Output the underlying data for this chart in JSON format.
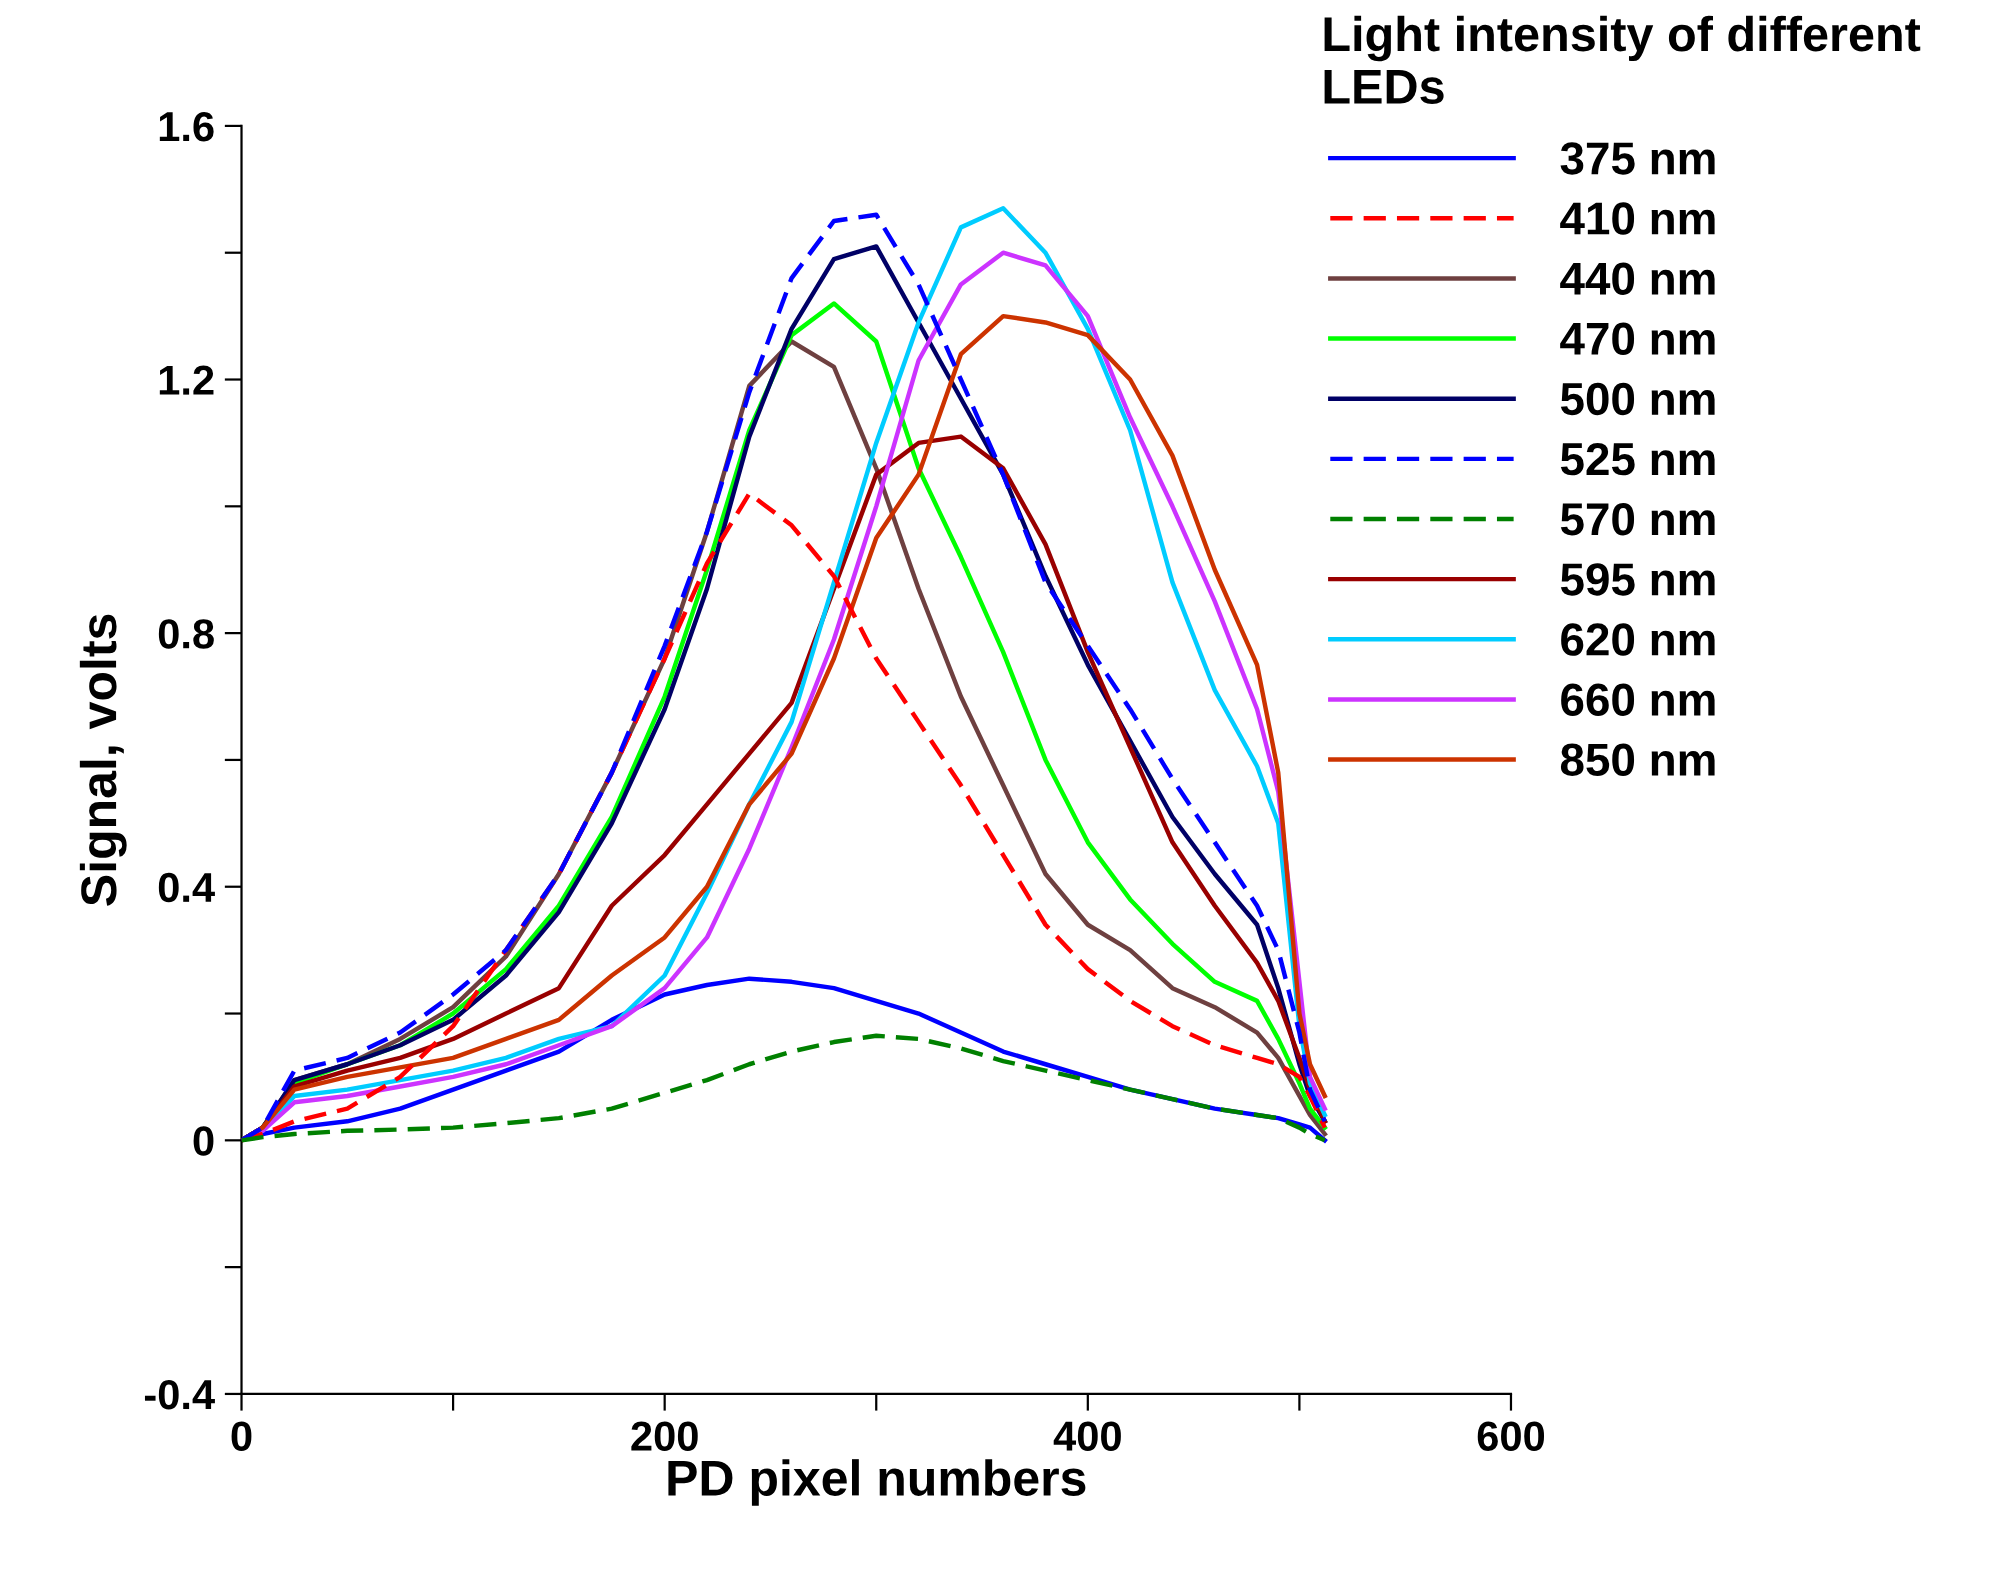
{
  "chart_data": {
    "type": "line",
    "xlabel": "PD pixel numbers",
    "ylabel": "Signal, volts",
    "legend_title": "Light intensity of different LEDs",
    "x": [
      0,
      10,
      25,
      50,
      75,
      100,
      125,
      150,
      175,
      200,
      220,
      240,
      260,
      280,
      300,
      320,
      340,
      360,
      380,
      400,
      420,
      440,
      460,
      480,
      490,
      500,
      505,
      512
    ],
    "series": [
      {
        "name": "375 nm",
        "color": "#0000ff",
        "line_style": "solid",
        "values": [
          0,
          0.01,
          0.02,
          0.03,
          0.05,
          0.08,
          0.11,
          0.14,
          0.19,
          0.23,
          0.245,
          0.255,
          0.25,
          0.24,
          0.22,
          0.2,
          0.17,
          0.14,
          0.12,
          0.1,
          0.08,
          0.065,
          0.05,
          0.04,
          0.035,
          0.025,
          0.02,
          0
        ]
      },
      {
        "name": "410 nm",
        "color": "#ff0000",
        "line_style": "dashed",
        "values": [
          0,
          0.01,
          0.03,
          0.05,
          0.1,
          0.18,
          0.3,
          0.42,
          0.58,
          0.76,
          0.91,
          1.02,
          0.97,
          0.89,
          0.76,
          0.66,
          0.56,
          0.45,
          0.34,
          0.27,
          0.22,
          0.18,
          0.15,
          0.13,
          0.12,
          0.1,
          0.07,
          0.02
        ]
      },
      {
        "name": "440 nm",
        "color": "#6e4040",
        "line_style": "solid",
        "values": [
          0,
          0.02,
          0.095,
          0.12,
          0.16,
          0.21,
          0.29,
          0.42,
          0.58,
          0.76,
          0.96,
          1.19,
          1.26,
          1.22,
          1.06,
          0.87,
          0.7,
          0.56,
          0.42,
          0.34,
          0.3,
          0.24,
          0.21,
          0.17,
          0.13,
          0.07,
          0.04,
          0.01
        ]
      },
      {
        "name": "470 nm",
        "color": "#00ff00",
        "line_style": "solid",
        "values": [
          0,
          0.02,
          0.09,
          0.12,
          0.15,
          0.2,
          0.27,
          0.37,
          0.51,
          0.7,
          0.9,
          1.12,
          1.27,
          1.32,
          1.26,
          1.06,
          0.92,
          0.77,
          0.6,
          0.47,
          0.38,
          0.31,
          0.25,
          0.22,
          0.16,
          0.09,
          0.05,
          0.02
        ]
      },
      {
        "name": "500 nm",
        "color": "#000066",
        "line_style": "solid",
        "values": [
          0,
          0.02,
          0.095,
          0.12,
          0.15,
          0.19,
          0.26,
          0.36,
          0.5,
          0.68,
          0.87,
          1.11,
          1.28,
          1.39,
          1.41,
          1.29,
          1.17,
          1.05,
          0.89,
          0.75,
          0.63,
          0.51,
          0.42,
          0.34,
          0.24,
          0.12,
          0.07,
          0.03
        ]
      },
      {
        "name": "525 nm",
        "color": "#0000ff",
        "line_style": "dashed",
        "values": [
          0,
          0.02,
          0.11,
          0.13,
          0.17,
          0.23,
          0.3,
          0.42,
          0.58,
          0.78,
          0.96,
          1.18,
          1.36,
          1.45,
          1.46,
          1.35,
          1.2,
          1.05,
          0.88,
          0.78,
          0.68,
          0.57,
          0.47,
          0.37,
          0.3,
          0.17,
          0.08,
          0.03
        ]
      },
      {
        "name": "570 nm",
        "color": "#008000",
        "line_style": "dashed",
        "values": [
          0,
          0.005,
          0.01,
          0.015,
          0.017,
          0.02,
          0.027,
          0.035,
          0.05,
          0.075,
          0.095,
          0.12,
          0.14,
          0.155,
          0.165,
          0.16,
          0.145,
          0.125,
          0.11,
          0.095,
          0.08,
          0.065,
          0.05,
          0.04,
          0.035,
          0.02,
          0.01,
          0
        ]
      },
      {
        "name": "595 nm",
        "color": "#990000",
        "line_style": "solid",
        "values": [
          0,
          0.02,
          0.085,
          0.11,
          0.13,
          0.16,
          0.2,
          0.24,
          0.37,
          0.45,
          0.53,
          0.61,
          0.69,
          0.87,
          1.05,
          1.1,
          1.11,
          1.06,
          0.94,
          0.77,
          0.62,
          0.47,
          0.37,
          0.28,
          0.22,
          0.13,
          0.08,
          0.03
        ]
      },
      {
        "name": "620 nm",
        "color": "#00ccff",
        "line_style": "solid",
        "values": [
          0,
          0.015,
          0.07,
          0.08,
          0.095,
          0.11,
          0.13,
          0.16,
          0.18,
          0.26,
          0.39,
          0.53,
          0.66,
          0.88,
          1.1,
          1.29,
          1.44,
          1.47,
          1.4,
          1.28,
          1.12,
          0.88,
          0.71,
          0.59,
          0.5,
          0.18,
          0.09,
          0.04
        ]
      },
      {
        "name": "660 nm",
        "color": "#cc33ff",
        "line_style": "solid",
        "values": [
          0,
          0.015,
          0.06,
          0.07,
          0.085,
          0.1,
          0.12,
          0.15,
          0.18,
          0.24,
          0.32,
          0.46,
          0.62,
          0.79,
          1.0,
          1.23,
          1.35,
          1.4,
          1.38,
          1.3,
          1.14,
          1.0,
          0.85,
          0.68,
          0.55,
          0.25,
          0.1,
          0.05
        ]
      },
      {
        "name": "850 nm",
        "color": "#cc3300",
        "line_style": "solid",
        "values": [
          0,
          0.02,
          0.08,
          0.1,
          0.115,
          0.13,
          0.16,
          0.19,
          0.26,
          0.32,
          0.4,
          0.53,
          0.61,
          0.76,
          0.95,
          1.05,
          1.24,
          1.3,
          1.29,
          1.27,
          1.2,
          1.08,
          0.9,
          0.75,
          0.58,
          0.2,
          0.12,
          0.07
        ]
      }
    ],
    "xlim": [
      0,
      600
    ],
    "xticks": [
      0,
      {
        "value": 100,
        "label": null
      },
      200,
      {
        "value": 300,
        "label": null
      },
      400,
      {
        "value": 500,
        "label": null
      },
      600
    ],
    "ylim": [
      -0.4,
      1.6
    ],
    "yticks": [
      -0.4,
      {
        "value": -0.2,
        "label": null
      },
      0,
      {
        "value": 0.2,
        "label": null
      },
      0.4,
      {
        "value": 0.6,
        "label": null
      },
      0.8,
      {
        "value": 1.0,
        "label": null
      },
      1.2,
      {
        "value": 1.4,
        "label": null
      },
      1.6
    ],
    "grid": false,
    "legend": "top right",
    "marker": "none"
  }
}
